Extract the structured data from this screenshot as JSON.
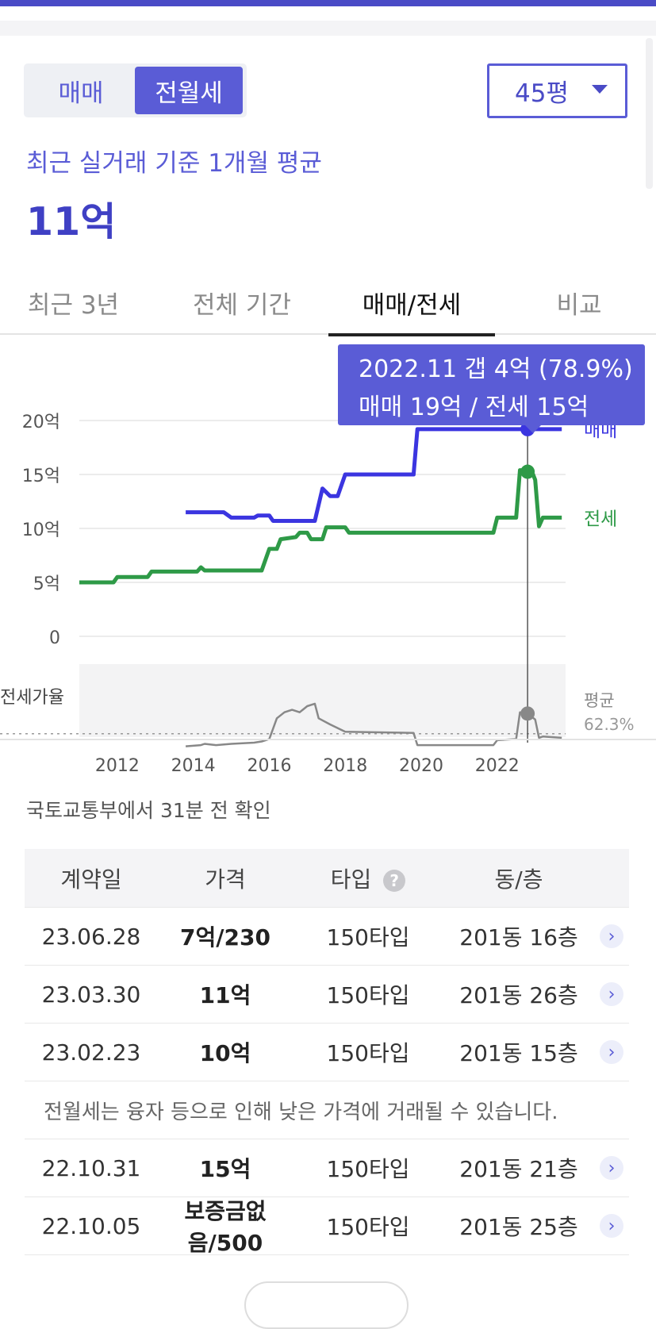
{
  "toggle": {
    "options": [
      "매매",
      "전월세"
    ],
    "selected": "전월세"
  },
  "size_select": {
    "value": "45평"
  },
  "summary": {
    "subtitle": "최근 실거래 기준 1개월 평균",
    "price": "11억"
  },
  "tabs": [
    {
      "label": "최근 3년",
      "active": false
    },
    {
      "label": "전체 기간",
      "active": false
    },
    {
      "label": "매매/전세",
      "active": true
    },
    {
      "label": "비교",
      "active": false
    }
  ],
  "tooltip": {
    "line1": "2022.11  갭 4억 (78.9%)",
    "line2": "매매 19억 / 전세 15억"
  },
  "colors": {
    "accent": "#5a5cd6",
    "sale": "#3b35e0",
    "jeonse": "#2e9a47",
    "ratio": "#888888"
  },
  "chart_data": {
    "type": "line",
    "y_ticks": [
      "20억",
      "15억",
      "10억",
      "5억",
      "0"
    ],
    "ylim": [
      0,
      20
    ],
    "x_ticks": [
      "2012",
      "2014",
      "2016",
      "2018",
      "2020",
      "2022"
    ],
    "xlim": [
      2011,
      2023.8
    ],
    "sub_label": "전세가율",
    "avg_label_1": "평균",
    "avg_label_2": "62.3%",
    "series": [
      {
        "name": "매매",
        "unit": "억",
        "points": [
          [
            2013.8,
            11.5
          ],
          [
            2014.8,
            11.5
          ],
          [
            2015.0,
            11.0
          ],
          [
            2015.6,
            11.0
          ],
          [
            2015.7,
            11.2
          ],
          [
            2016.0,
            11.2
          ],
          [
            2016.1,
            10.7
          ],
          [
            2017.2,
            10.7
          ],
          [
            2017.4,
            13.7
          ],
          [
            2017.6,
            13.0
          ],
          [
            2017.8,
            13.0
          ],
          [
            2018.0,
            15.0
          ],
          [
            2019.8,
            15.0
          ],
          [
            2019.9,
            19.2
          ],
          [
            2022.7,
            19.2
          ],
          [
            2023.7,
            19.2
          ]
        ]
      },
      {
        "name": "전세",
        "unit": "억",
        "points": [
          [
            2011.0,
            5.0
          ],
          [
            2011.9,
            5.0
          ],
          [
            2012.0,
            5.5
          ],
          [
            2012.8,
            5.5
          ],
          [
            2012.9,
            6.0
          ],
          [
            2014.1,
            6.0
          ],
          [
            2014.2,
            6.4
          ],
          [
            2014.3,
            6.1
          ],
          [
            2015.8,
            6.1
          ],
          [
            2016.0,
            8.1
          ],
          [
            2016.2,
            8.1
          ],
          [
            2016.3,
            9.0
          ],
          [
            2016.7,
            9.2
          ],
          [
            2016.8,
            9.6
          ],
          [
            2017.0,
            9.6
          ],
          [
            2017.1,
            9.0
          ],
          [
            2017.4,
            9.0
          ],
          [
            2017.5,
            10.1
          ],
          [
            2018.0,
            10.1
          ],
          [
            2018.1,
            9.6
          ],
          [
            2021.9,
            9.6
          ],
          [
            2022.0,
            11.0
          ],
          [
            2022.5,
            11.0
          ],
          [
            2022.6,
            15.4
          ],
          [
            2022.9,
            15.4
          ],
          [
            2023.0,
            14.5
          ],
          [
            2023.1,
            10.2
          ],
          [
            2023.2,
            11.0
          ],
          [
            2023.7,
            11.0
          ]
        ]
      },
      {
        "name": "전세가율",
        "unit": "%",
        "ylim": [
          40,
          100
        ],
        "points": [
          [
            2013.8,
            52
          ],
          [
            2014.2,
            53
          ],
          [
            2014.3,
            54
          ],
          [
            2014.6,
            53
          ],
          [
            2015.0,
            54
          ],
          [
            2015.6,
            55
          ],
          [
            2015.8,
            56
          ],
          [
            2016.0,
            58
          ],
          [
            2016.2,
            75
          ],
          [
            2016.4,
            80
          ],
          [
            2016.6,
            82
          ],
          [
            2016.8,
            80
          ],
          [
            2017.0,
            85
          ],
          [
            2017.2,
            87
          ],
          [
            2017.3,
            75
          ],
          [
            2017.6,
            70
          ],
          [
            2018.0,
            64
          ],
          [
            2019.8,
            63
          ],
          [
            2019.9,
            53
          ],
          [
            2021.9,
            53
          ],
          [
            2022.0,
            57
          ],
          [
            2022.5,
            58
          ],
          [
            2022.6,
            80
          ],
          [
            2022.8,
            79
          ],
          [
            2023.0,
            74
          ],
          [
            2023.1,
            59
          ],
          [
            2023.2,
            60
          ],
          [
            2023.7,
            59
          ]
        ]
      }
    ],
    "highlight_x": 2022.8,
    "highlight_ratio": 78.9
  },
  "source_note": "국토교통부에서 31분 전 확인",
  "table": {
    "headers": {
      "date": "계약일",
      "price": "가격",
      "type": "타입",
      "floor": "동/층"
    },
    "help_icon": "?",
    "arrow_icon": "›",
    "rows": [
      {
        "date": "23.06.28",
        "price": "7억/230",
        "type": "150타입",
        "floor": "201동 16층"
      },
      {
        "date": "23.03.30",
        "price": "11억",
        "type": "150타입",
        "floor": "201동 26층"
      },
      {
        "date": "23.02.23",
        "price": "10억",
        "type": "150타입",
        "floor": "201동 15층"
      }
    ],
    "notice": "전월세는 융자 등으로 인해 낮은 가격에 거래될 수 있습니다.",
    "rows2": [
      {
        "date": "22.10.31",
        "price": "15억",
        "type": "150타입",
        "floor": "201동 21층"
      },
      {
        "date": "22.10.05",
        "price": "보증금없음/500",
        "type": "150타입",
        "floor": "201동 25층"
      }
    ]
  }
}
